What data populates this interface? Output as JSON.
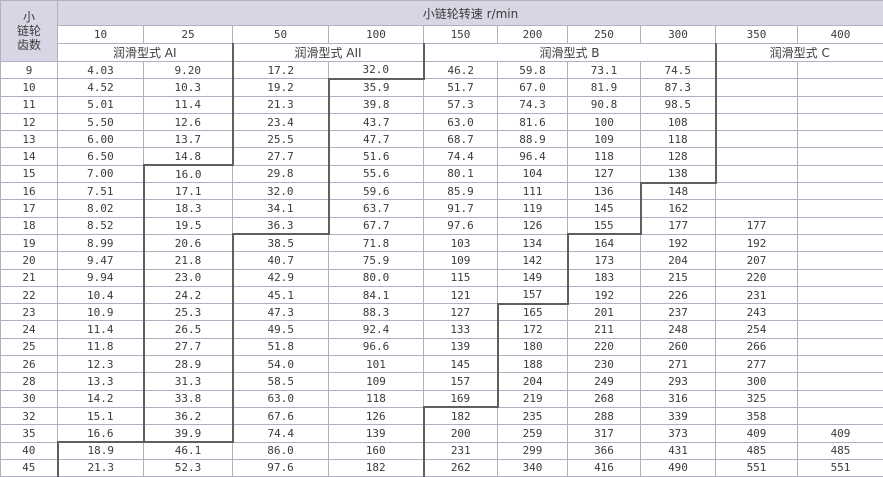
{
  "colors": {
    "header_bg": "#d6d6e4",
    "grid_line": "#b0b0c2",
    "zone_line": "#5f5f5f",
    "text": "#3b3b3b"
  },
  "header": {
    "teeth_label_lines": [
      "小",
      "链轮",
      "齿数"
    ],
    "title": "小链轮转速  r/min",
    "speeds": [
      "10",
      "25",
      "50",
      "100",
      "150",
      "200",
      "250",
      "300",
      "350",
      "400"
    ],
    "lube_types": [
      {
        "label": "润滑型式 AI",
        "span": 2
      },
      {
        "label": "润滑型式 AII",
        "span": 2
      },
      {
        "label": "润滑型式 B",
        "span": 4
      },
      {
        "label": "润滑型式 C",
        "span": 2
      }
    ]
  },
  "rows": [
    {
      "teeth": "9",
      "values": [
        "4.03",
        "9.20",
        "17.2",
        "32.0",
        "46.2",
        "59.8",
        "73.1",
        "74.5",
        "",
        ""
      ],
      "zones": {
        "aii": 3,
        "b": 5,
        "c": 9
      }
    },
    {
      "teeth": "10",
      "values": [
        "4.52",
        "10.3",
        "19.2",
        "35.9",
        "51.7",
        "67.0",
        "81.9",
        "87.3",
        "",
        ""
      ],
      "zones": {
        "aii": 3,
        "b": 4,
        "c": 9
      }
    },
    {
      "teeth": "11",
      "values": [
        "5.01",
        "11.4",
        "21.3",
        "39.8",
        "57.3",
        "74.3",
        "90.8",
        "98.5",
        "",
        ""
      ],
      "zones": {
        "aii": 3,
        "b": 4,
        "c": 9
      }
    },
    {
      "teeth": "12",
      "values": [
        "5.50",
        "12.6",
        "23.4",
        "43.7",
        "63.0",
        "81.6",
        "100",
        "108",
        "",
        ""
      ],
      "zones": {
        "aii": 3,
        "b": 4,
        "c": 9
      }
    },
    {
      "teeth": "13",
      "values": [
        "6.00",
        "13.7",
        "25.5",
        "47.7",
        "68.7",
        "88.9",
        "109",
        "118",
        "",
        ""
      ],
      "zones": {
        "aii": 3,
        "b": 4,
        "c": 9
      }
    },
    {
      "teeth": "14",
      "values": [
        "6.50",
        "14.8",
        "27.7",
        "51.6",
        "74.4",
        "96.4",
        "118",
        "128",
        "",
        ""
      ],
      "zones": {
        "aii": 3,
        "b": 4,
        "c": 9
      }
    },
    {
      "teeth": "15",
      "values": [
        "7.00",
        "16.0",
        "29.8",
        "55.6",
        "80.1",
        "104",
        "127",
        "138",
        "",
        ""
      ],
      "zones": {
        "aii": 2,
        "b": 4,
        "c": 9
      }
    },
    {
      "teeth": "16",
      "values": [
        "7.51",
        "17.1",
        "32.0",
        "59.6",
        "85.9",
        "111",
        "136",
        "148",
        "",
        ""
      ],
      "zones": {
        "aii": 2,
        "b": 4,
        "c": 8
      }
    },
    {
      "teeth": "17",
      "values": [
        "8.02",
        "18.3",
        "34.1",
        "63.7",
        "91.7",
        "119",
        "145",
        "162",
        "",
        ""
      ],
      "zones": {
        "aii": 2,
        "b": 4,
        "c": 8
      }
    },
    {
      "teeth": "18",
      "values": [
        "8.52",
        "19.5",
        "36.3",
        "67.7",
        "97.6",
        "126",
        "155",
        "177",
        "177",
        ""
      ],
      "zones": {
        "aii": 2,
        "b": 4,
        "c": 8
      }
    },
    {
      "teeth": "19",
      "values": [
        "8.99",
        "20.6",
        "38.5",
        "71.8",
        "103",
        "134",
        "164",
        "192",
        "192",
        ""
      ],
      "zones": {
        "aii": 2,
        "b": 3,
        "c": 7
      }
    },
    {
      "teeth": "20",
      "values": [
        "9.47",
        "21.8",
        "40.7",
        "75.9",
        "109",
        "142",
        "173",
        "204",
        "207",
        ""
      ],
      "zones": {
        "aii": 2,
        "b": 3,
        "c": 7
      }
    },
    {
      "teeth": "21",
      "values": [
        "9.94",
        "23.0",
        "42.9",
        "80.0",
        "115",
        "149",
        "183",
        "215",
        "220",
        ""
      ],
      "zones": {
        "aii": 2,
        "b": 3,
        "c": 7
      }
    },
    {
      "teeth": "22",
      "values": [
        "10.4",
        "24.2",
        "45.1",
        "84.1",
        "121",
        "157",
        "192",
        "226",
        "231",
        ""
      ],
      "zones": {
        "aii": 2,
        "b": 3,
        "c": 7
      }
    },
    {
      "teeth": "23",
      "values": [
        "10.9",
        "25.3",
        "47.3",
        "88.3",
        "127",
        "165",
        "201",
        "237",
        "243",
        ""
      ],
      "zones": {
        "aii": 2,
        "b": 3,
        "c": 6
      }
    },
    {
      "teeth": "24",
      "values": [
        "11.4",
        "26.5",
        "49.5",
        "92.4",
        "133",
        "172",
        "211",
        "248",
        "254",
        ""
      ],
      "zones": {
        "aii": 2,
        "b": 3,
        "c": 6
      }
    },
    {
      "teeth": "25",
      "values": [
        "11.8",
        "27.7",
        "51.8",
        "96.6",
        "139",
        "180",
        "220",
        "260",
        "266",
        ""
      ],
      "zones": {
        "aii": 2,
        "b": 3,
        "c": 6
      }
    },
    {
      "teeth": "26",
      "values": [
        "12.3",
        "28.9",
        "54.0",
        "101",
        "145",
        "188",
        "230",
        "271",
        "277",
        ""
      ],
      "zones": {
        "aii": 2,
        "b": 3,
        "c": 6
      }
    },
    {
      "teeth": "28",
      "values": [
        "13.3",
        "31.3",
        "58.5",
        "109",
        "157",
        "204",
        "249",
        "293",
        "300",
        ""
      ],
      "zones": {
        "aii": 2,
        "b": 3,
        "c": 6
      }
    },
    {
      "teeth": "30",
      "values": [
        "14.2",
        "33.8",
        "63.0",
        "118",
        "169",
        "219",
        "268",
        "316",
        "325",
        ""
      ],
      "zones": {
        "aii": 2,
        "b": 3,
        "c": 6
      }
    },
    {
      "teeth": "32",
      "values": [
        "15.1",
        "36.2",
        "67.6",
        "126",
        "182",
        "235",
        "288",
        "339",
        "358",
        ""
      ],
      "zones": {
        "aii": 2,
        "b": 3,
        "c": 5
      }
    },
    {
      "teeth": "35",
      "values": [
        "16.6",
        "39.9",
        "74.4",
        "139",
        "200",
        "259",
        "317",
        "373",
        "409",
        "409"
      ],
      "zones": {
        "aii": 2,
        "b": 3,
        "c": 5
      }
    },
    {
      "teeth": "40",
      "values": [
        "18.9",
        "46.1",
        "86.0",
        "160",
        "231",
        "299",
        "366",
        "431",
        "485",
        "485"
      ],
      "zones": {
        "aii": null,
        "b": 1,
        "c": 5
      }
    },
    {
      "teeth": "45",
      "values": [
        "21.3",
        "52.3",
        "97.6",
        "182",
        "262",
        "340",
        "416",
        "490",
        "551",
        "551"
      ],
      "zones": {
        "aii": null,
        "b": 1,
        "c": 5
      }
    }
  ]
}
